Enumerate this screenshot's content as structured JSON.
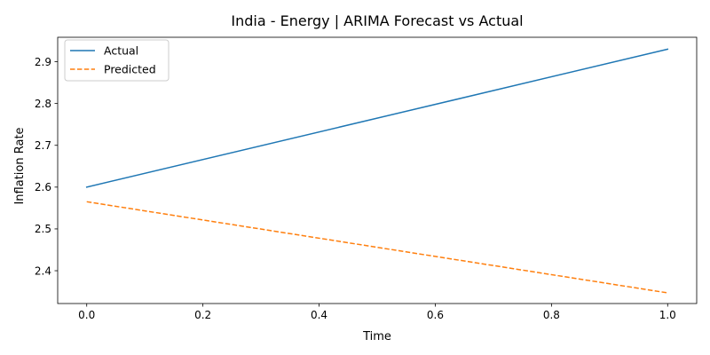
{
  "chart_data": {
    "type": "line",
    "title": "India - Energy | ARIMA Forecast vs Actual",
    "xlabel": "Time",
    "ylabel": "Inflation Rate",
    "x": [
      0.0,
      1.0
    ],
    "series": [
      {
        "name": "Actual",
        "values": [
          2.6,
          2.93
        ],
        "color": "#1f77b4",
        "line_style": "solid"
      },
      {
        "name": "Predicted",
        "values": [
          2.565,
          2.347
        ],
        "color": "#ff7f0e",
        "line_style": "dashed"
      }
    ],
    "xlim": [
      -0.05,
      1.05
    ],
    "ylim": [
      2.3215,
      2.9585
    ],
    "xticks": [
      0.0,
      0.2,
      0.4,
      0.6,
      0.8,
      1.0
    ],
    "xtick_labels": [
      "0.0",
      "0.2",
      "0.4",
      "0.6",
      "0.8",
      "1.0"
    ],
    "yticks": [
      2.4,
      2.5,
      2.6,
      2.7,
      2.8,
      2.9
    ],
    "ytick_labels": [
      "2.4",
      "2.5",
      "2.6",
      "2.7",
      "2.8",
      "2.9"
    ],
    "grid": false,
    "legend_position": "top-left"
  }
}
